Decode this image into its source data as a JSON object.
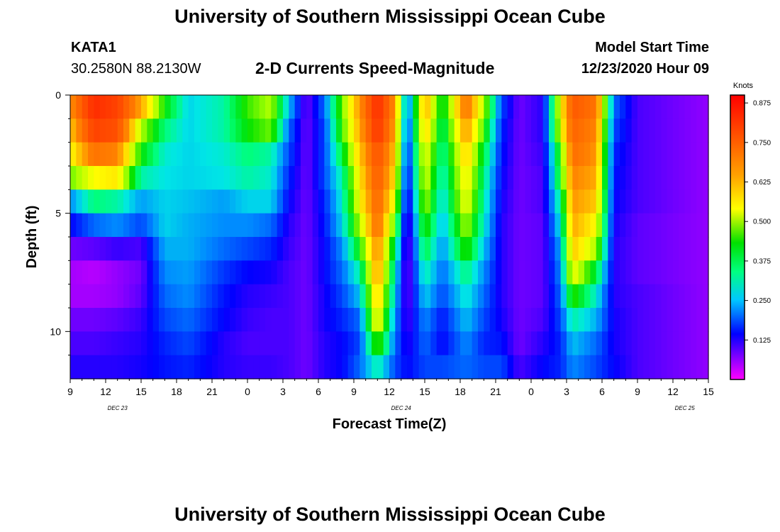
{
  "header": {
    "title": "University of Southern Mississippi Ocean Cube",
    "station_id": "KATA1",
    "station_coords": "30.2580N 88.2130W",
    "model_start_label": "Model Start Time",
    "model_start_value": "12/23/2020 Hour 09",
    "footer_title": "University of Southern Mississippi Ocean Cube"
  },
  "chart_data": {
    "type": "heatmap",
    "title": "2-D Currents Speed-Magnitude",
    "xlabel": "Forecast Time(Z)",
    "ylabel": "Depth (ft)",
    "x_ticks": [
      "9",
      "12",
      "15",
      "18",
      "21",
      "0",
      "3",
      "6",
      "9",
      "12",
      "15",
      "18",
      "21",
      "0",
      "3",
      "6",
      "9",
      "12",
      "15"
    ],
    "day_labels": [
      "DEC 23",
      "DEC 24",
      "DEC 25"
    ],
    "y_ticks": [
      "0",
      "5",
      "10"
    ],
    "ylim": [
      0,
      12
    ],
    "xlim_hours": [
      0,
      54
    ],
    "colorbar": {
      "unit": "Knots",
      "range": [
        0,
        0.9
      ],
      "ticks": [
        "0.875",
        "0.750",
        "0.625",
        "0.500",
        "0.375",
        "0.250",
        "0.125"
      ],
      "tick_values": [
        0.875,
        0.75,
        0.625,
        0.5,
        0.375,
        0.25,
        0.125
      ]
    },
    "depth_levels": [
      0.5,
      1.5,
      2.5,
      3.5,
      4.5,
      5.5,
      6.5,
      7.5,
      8.5,
      9.5,
      10.5,
      11.5
    ],
    "time_keyframes": [
      [
        0.0,
        0.6,
        0.55,
        0.5,
        0.42,
        0.22,
        0.14,
        0.08,
        0.05,
        0.05,
        0.08,
        0.1,
        0.12
      ],
      [
        2.0,
        0.8,
        0.75,
        0.65,
        0.5,
        0.32,
        0.2,
        0.09,
        0.04,
        0.05,
        0.08,
        0.1,
        0.12
      ],
      [
        4.0,
        0.75,
        0.72,
        0.62,
        0.52,
        0.3,
        0.22,
        0.11,
        0.06,
        0.06,
        0.09,
        0.11,
        0.12
      ],
      [
        6.0,
        0.58,
        0.45,
        0.38,
        0.3,
        0.23,
        0.18,
        0.1,
        0.08,
        0.09,
        0.11,
        0.12,
        0.13
      ],
      [
        8.0,
        0.38,
        0.32,
        0.28,
        0.27,
        0.26,
        0.26,
        0.24,
        0.22,
        0.2,
        0.18,
        0.16,
        0.15
      ],
      [
        10.0,
        0.26,
        0.26,
        0.26,
        0.26,
        0.25,
        0.24,
        0.24,
        0.23,
        0.22,
        0.2,
        0.18,
        0.16
      ],
      [
        13.0,
        0.3,
        0.3,
        0.28,
        0.27,
        0.23,
        0.22,
        0.2,
        0.17,
        0.15,
        0.14,
        0.12,
        0.12
      ],
      [
        15.0,
        0.4,
        0.38,
        0.32,
        0.3,
        0.26,
        0.22,
        0.18,
        0.14,
        0.12,
        0.11,
        0.1,
        0.11
      ],
      [
        17.0,
        0.45,
        0.42,
        0.3,
        0.28,
        0.26,
        0.2,
        0.16,
        0.13,
        0.11,
        0.1,
        0.1,
        0.11
      ],
      [
        18.5,
        0.25,
        0.2,
        0.18,
        0.16,
        0.14,
        0.12,
        0.11,
        0.1,
        0.1,
        0.1,
        0.1,
        0.1
      ],
      [
        20.0,
        0.08,
        0.08,
        0.08,
        0.08,
        0.08,
        0.08,
        0.08,
        0.08,
        0.08,
        0.08,
        0.08,
        0.08
      ],
      [
        21.5,
        0.2,
        0.18,
        0.18,
        0.18,
        0.16,
        0.15,
        0.14,
        0.14,
        0.13,
        0.13,
        0.12,
        0.12
      ],
      [
        23.0,
        0.42,
        0.4,
        0.35,
        0.3,
        0.28,
        0.26,
        0.22,
        0.2,
        0.18,
        0.16,
        0.14,
        0.14
      ],
      [
        24.5,
        0.6,
        0.58,
        0.55,
        0.52,
        0.5,
        0.45,
        0.38,
        0.3,
        0.25,
        0.2,
        0.18,
        0.2
      ],
      [
        26.0,
        0.8,
        0.78,
        0.72,
        0.7,
        0.68,
        0.66,
        0.62,
        0.6,
        0.56,
        0.52,
        0.42,
        0.3
      ],
      [
        27.5,
        0.6,
        0.58,
        0.55,
        0.52,
        0.48,
        0.4,
        0.33,
        0.28,
        0.25,
        0.22,
        0.2,
        0.18
      ],
      [
        28.5,
        0.18,
        0.16,
        0.14,
        0.12,
        0.1,
        0.08,
        0.07,
        0.07,
        0.08,
        0.1,
        0.12,
        0.14
      ],
      [
        30.0,
        0.58,
        0.55,
        0.5,
        0.48,
        0.45,
        0.4,
        0.35,
        0.3,
        0.26,
        0.22,
        0.2,
        0.18
      ],
      [
        31.5,
        0.35,
        0.32,
        0.3,
        0.28,
        0.26,
        0.24,
        0.22,
        0.2,
        0.18,
        0.15,
        0.14,
        0.18
      ],
      [
        33.5,
        0.65,
        0.6,
        0.55,
        0.52,
        0.5,
        0.45,
        0.4,
        0.32,
        0.28,
        0.25,
        0.22,
        0.2
      ],
      [
        35.0,
        0.45,
        0.4,
        0.35,
        0.32,
        0.3,
        0.28,
        0.25,
        0.22,
        0.2,
        0.18,
        0.16,
        0.18
      ],
      [
        36.5,
        0.18,
        0.16,
        0.15,
        0.14,
        0.13,
        0.12,
        0.12,
        0.12,
        0.12,
        0.13,
        0.15,
        0.18
      ],
      [
        38.0,
        0.08,
        0.08,
        0.08,
        0.08,
        0.08,
        0.08,
        0.08,
        0.08,
        0.08,
        0.08,
        0.08,
        0.1
      ],
      [
        40.0,
        0.12,
        0.12,
        0.11,
        0.1,
        0.1,
        0.09,
        0.09,
        0.09,
        0.09,
        0.1,
        0.12,
        0.14
      ],
      [
        41.5,
        0.5,
        0.48,
        0.4,
        0.38,
        0.32,
        0.28,
        0.24,
        0.22,
        0.2,
        0.18,
        0.16,
        0.16
      ],
      [
        42.5,
        0.7,
        0.68,
        0.66,
        0.62,
        0.6,
        0.58,
        0.55,
        0.5,
        0.4,
        0.3,
        0.25,
        0.22
      ],
      [
        44.5,
        0.65,
        0.62,
        0.6,
        0.58,
        0.55,
        0.5,
        0.45,
        0.35,
        0.28,
        0.24,
        0.2,
        0.18
      ],
      [
        46.0,
        0.2,
        0.18,
        0.16,
        0.15,
        0.14,
        0.13,
        0.12,
        0.12,
        0.12,
        0.13,
        0.13,
        0.14
      ],
      [
        48.0,
        0.1,
        0.1,
        0.1,
        0.1,
        0.1,
        0.09,
        0.09,
        0.09,
        0.1,
        0.1,
        0.1,
        0.1
      ],
      [
        54.0,
        0.06,
        0.06,
        0.06,
        0.06,
        0.06,
        0.06,
        0.06,
        0.06,
        0.06,
        0.06,
        0.06,
        0.06
      ]
    ]
  }
}
